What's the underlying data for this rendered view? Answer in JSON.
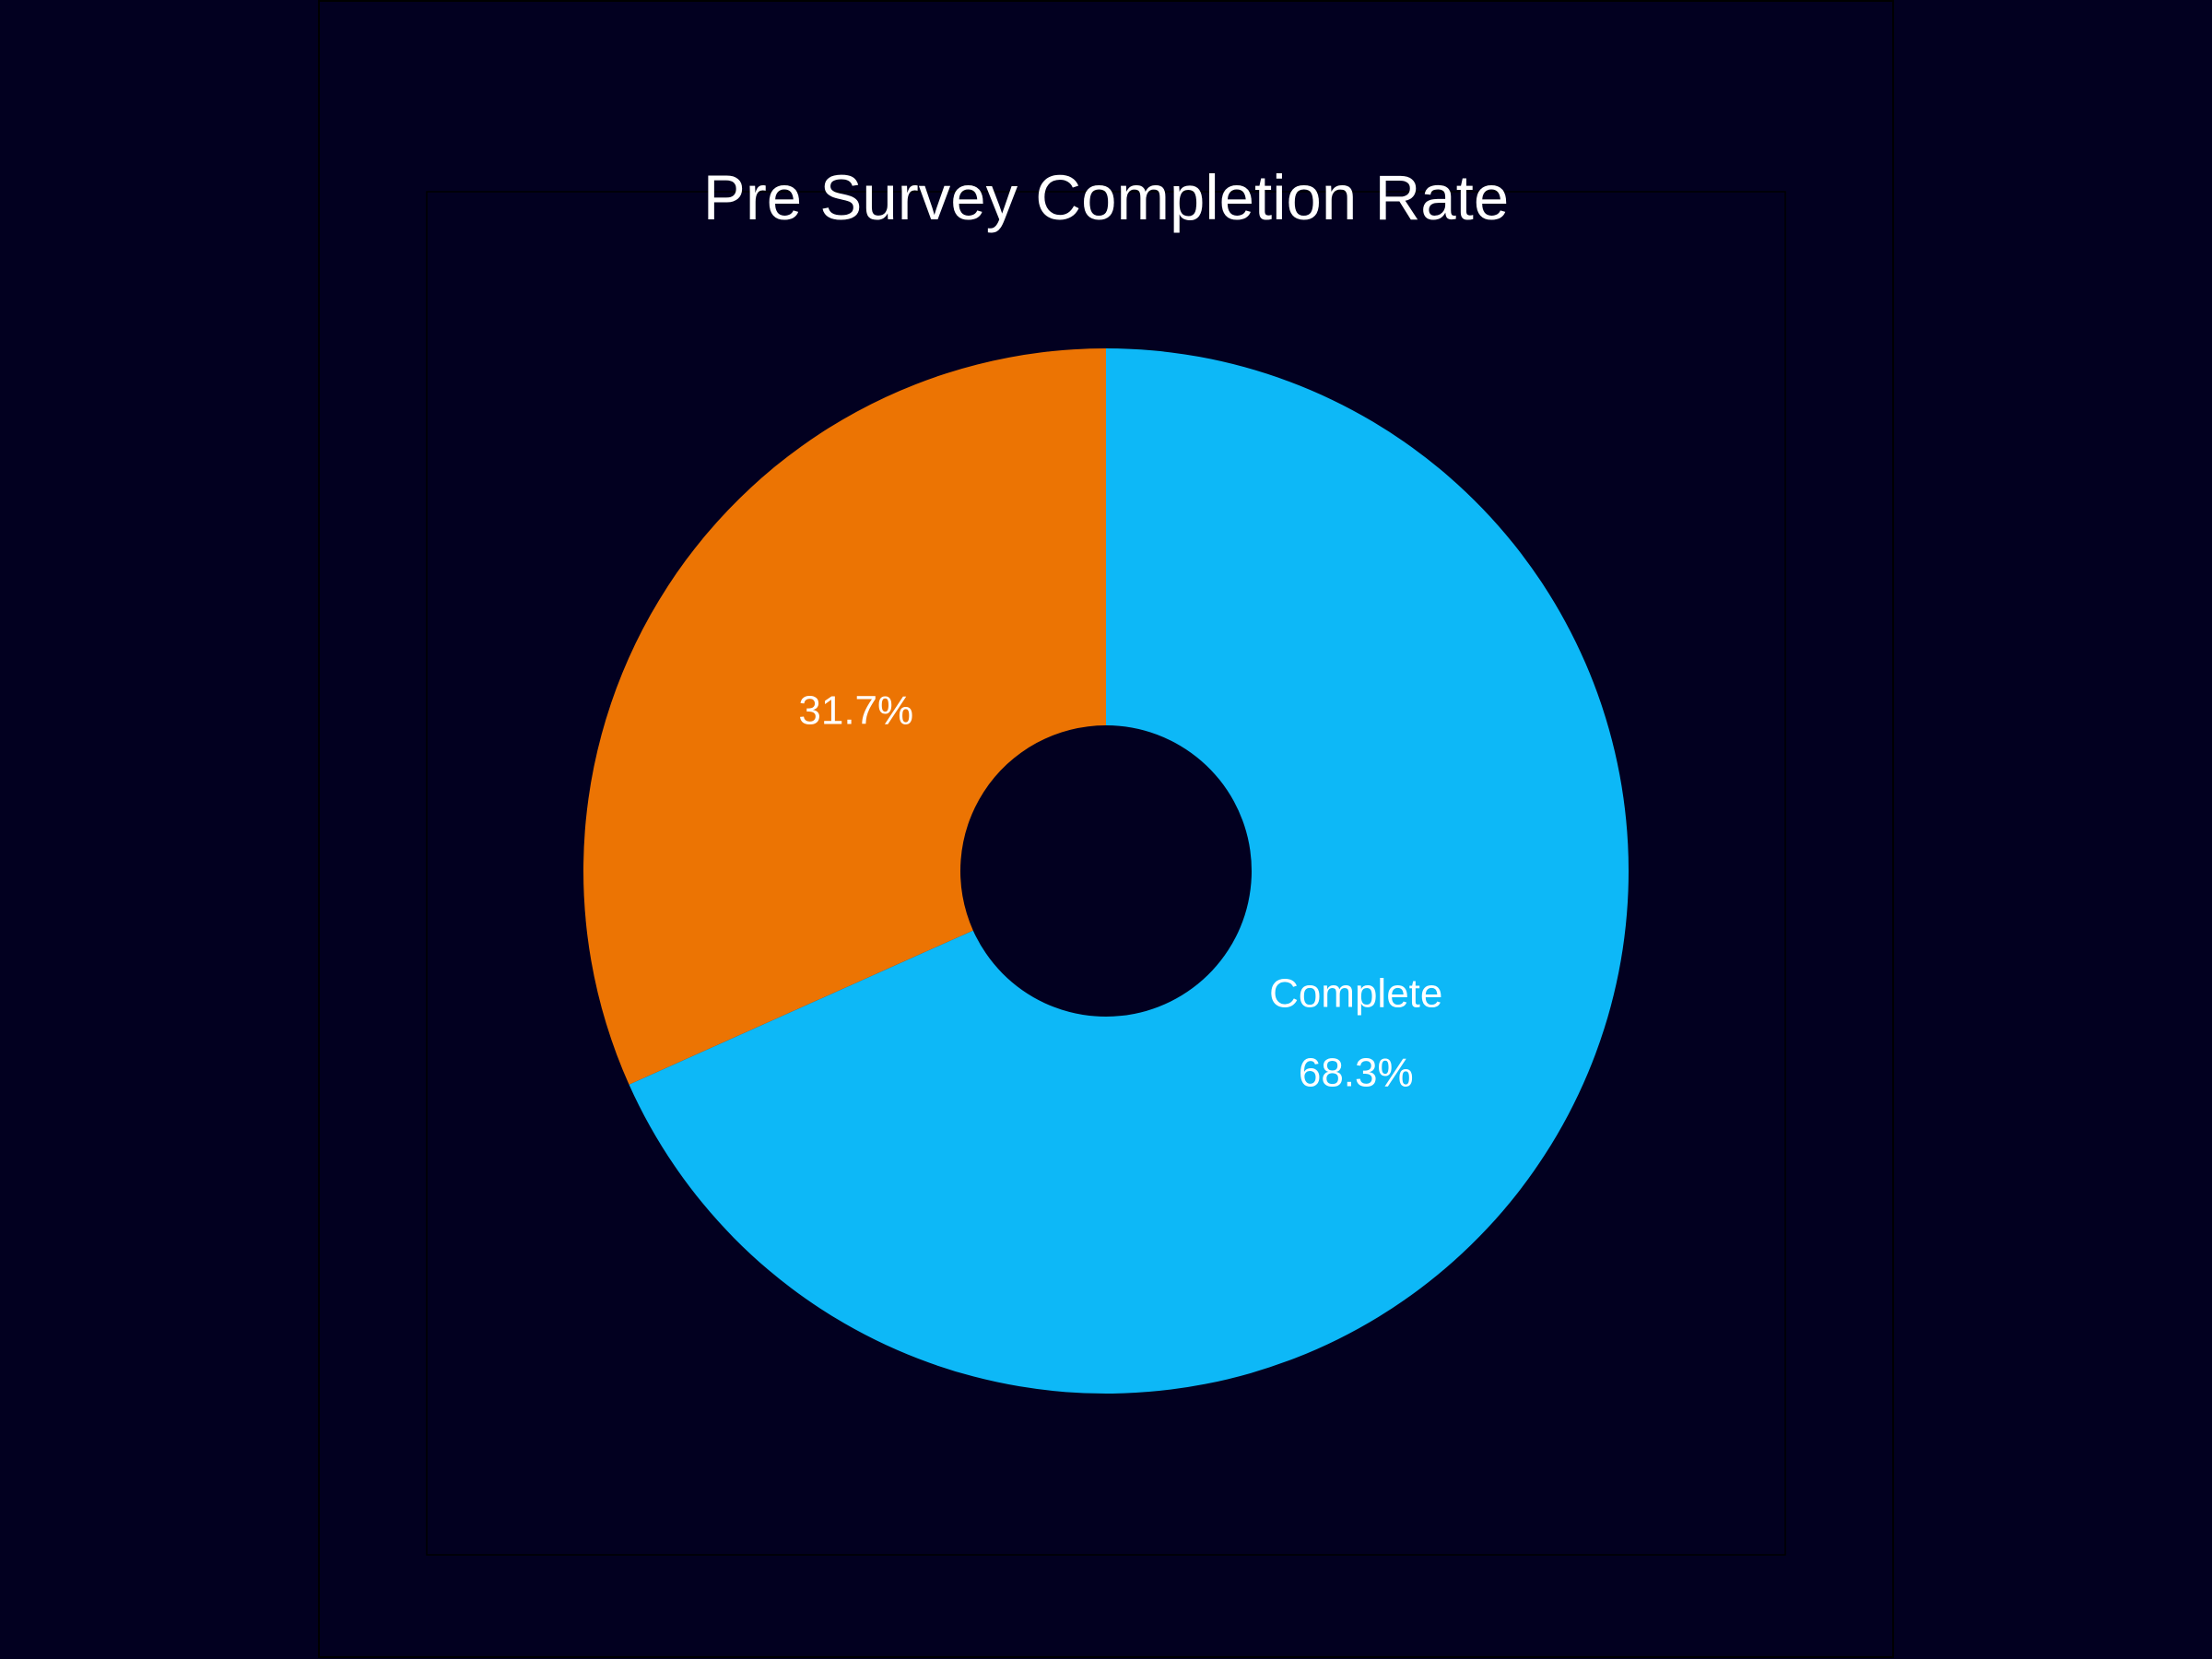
{
  "chart_data": {
    "type": "pie",
    "title": "Pre Survey Completion Rate",
    "donut": true,
    "start": "12 o'clock",
    "direction": "clockwise",
    "slices": [
      {
        "label": "Complete",
        "value": 68.3,
        "value_label": "68.3%",
        "color": "#0db8f7"
      },
      {
        "label": "",
        "value": 31.7,
        "value_label": "31.7%",
        "color": "#ec7403"
      }
    ]
  },
  "colors": {
    "background": "#020020"
  }
}
